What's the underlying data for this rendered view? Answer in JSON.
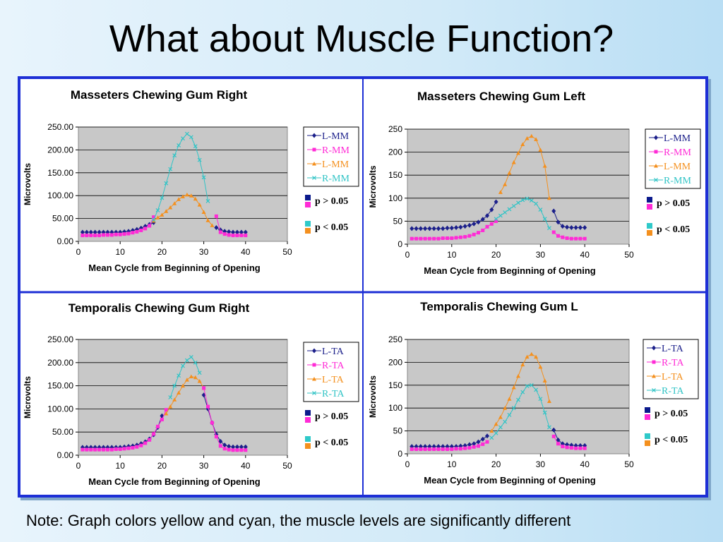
{
  "title": "What about Muscle Function?",
  "note": "Note:  Graph colors yellow and cyan, the muscle levels are significantly different",
  "colors": {
    "L-MM": "#1b1f8a",
    "R-MM": "#ff2bd6",
    "L-MM (orange)": "#f4901e",
    "R-MM (cyan)": "#31c4c6",
    "L-TA": "#1b1f8a",
    "R-TA": "#ff2bd6",
    "L-TA (orange)": "#f4901e",
    "R-TA (cyan)": "#31c4c6",
    "p_gt_top": "#0b1a8c",
    "p_gt_bottom": "#ff2bd6",
    "p_lt_top": "#2fc9c9",
    "p_lt_bottom": "#f4901e",
    "plot_bg": "#c8c8c8",
    "frame": "#1d2fd6"
  },
  "chart_data": [
    {
      "type": "line",
      "title": "Masseters Chewing Gum Right",
      "xlabel": "Mean Cycle from Beginning of Opening",
      "ylabel": "Microvolts",
      "xlim": [
        0,
        50
      ],
      "ylim": [
        0,
        250
      ],
      "xticks": [
        "0",
        "10",
        "20",
        "30",
        "40",
        "50"
      ],
      "yticks": [
        "0.00",
        "50.00",
        "100.00",
        "150.00",
        "200.00",
        "250.00"
      ],
      "legend": [
        "L-MM",
        "R-MM",
        "L-MM",
        "R-MM"
      ],
      "significance": [
        "p > 0.05",
        "p < 0.05"
      ],
      "series": [
        {
          "name": "L-MM",
          "x": [
            1,
            2,
            3,
            4,
            5,
            6,
            7,
            8,
            9,
            10,
            11,
            12,
            13,
            14,
            15,
            16,
            17,
            18
          ],
          "values": [
            20,
            20,
            20,
            20,
            20,
            20,
            20,
            20,
            20,
            20,
            21,
            22,
            24,
            26,
            29,
            33,
            37,
            41
          ]
        },
        {
          "name": "R-MM",
          "x": [
            1,
            2,
            3,
            4,
            5,
            6,
            7,
            8,
            9,
            10,
            11,
            12,
            13,
            14,
            15,
            16,
            17,
            18
          ],
          "values": [
            13,
            13,
            13,
            13,
            13,
            14,
            14,
            14,
            15,
            15,
            16,
            17,
            19,
            21,
            24,
            28,
            34,
            53
          ]
        },
        {
          "name": "L-MM",
          "x": [
            18,
            19,
            20,
            21,
            22,
            23,
            24,
            25,
            26,
            27,
            28,
            29,
            30,
            31,
            32
          ],
          "values": [
            45,
            52,
            58,
            66,
            74,
            83,
            92,
            98,
            102,
            100,
            93,
            80,
            64,
            46,
            35
          ]
        },
        {
          "name": "R-MM",
          "x": [
            18,
            19,
            20,
            21,
            22,
            23,
            24,
            25,
            26,
            27,
            28,
            29,
            30,
            31
          ],
          "values": [
            47,
            68,
            95,
            127,
            158,
            188,
            210,
            225,
            235,
            228,
            208,
            178,
            140,
            88
          ]
        },
        {
          "name": "L-MM",
          "x": [
            33,
            34,
            35,
            36,
            37,
            38,
            39,
            40
          ],
          "values": [
            30,
            25,
            22,
            21,
            20,
            20,
            20,
            20
          ]
        },
        {
          "name": "R-MM",
          "x": [
            33,
            34,
            35,
            36,
            37,
            38,
            39,
            40
          ],
          "values": [
            55,
            20,
            16,
            14,
            13,
            13,
            13,
            13
          ]
        }
      ]
    },
    {
      "type": "line",
      "title": "Masseters Chewing Gum Left",
      "xlabel": "Mean Cycle from Beginning of Opening",
      "ylabel": "Microvolts",
      "xlim": [
        0,
        50
      ],
      "ylim": [
        0,
        250
      ],
      "xticks": [
        "0",
        "10",
        "20",
        "30",
        "40",
        "50"
      ],
      "yticks": [
        "0",
        "50",
        "100",
        "150",
        "200",
        "250"
      ],
      "legend": [
        "L-MM",
        "R-MM",
        "L-MM",
        "R-MM"
      ],
      "significance": [
        "p > 0.05",
        "p < 0.05"
      ],
      "series": [
        {
          "name": "L-MM",
          "x": [
            1,
            2,
            3,
            4,
            5,
            6,
            7,
            8,
            9,
            10,
            11,
            12,
            13,
            14,
            15,
            16,
            17,
            18,
            19,
            20
          ],
          "values": [
            34,
            34,
            34,
            34,
            34,
            34,
            34,
            34,
            35,
            35,
            36,
            37,
            39,
            41,
            44,
            48,
            54,
            62,
            75,
            92
          ]
        },
        {
          "name": "R-MM",
          "x": [
            1,
            2,
            3,
            4,
            5,
            6,
            7,
            8,
            9,
            10,
            11,
            12,
            13,
            14,
            15,
            16,
            17,
            18,
            19,
            20
          ],
          "values": [
            12,
            12,
            12,
            12,
            12,
            12,
            12,
            13,
            13,
            13,
            14,
            15,
            16,
            18,
            21,
            25,
            30,
            38,
            44,
            50
          ]
        },
        {
          "name": "L-MM",
          "x": [
            21,
            22,
            23,
            24,
            25,
            26,
            27,
            28,
            29,
            30,
            31,
            32
          ],
          "values": [
            113,
            130,
            155,
            178,
            198,
            217,
            230,
            235,
            228,
            205,
            170,
            100
          ]
        },
        {
          "name": "R-MM",
          "x": [
            20,
            21,
            22,
            23,
            24,
            25,
            26,
            27,
            28,
            29,
            30,
            31,
            32
          ],
          "values": [
            55,
            62,
            69,
            76,
            83,
            90,
            96,
            99,
            95,
            88,
            75,
            55,
            35
          ]
        },
        {
          "name": "L-MM",
          "x": [
            33,
            34,
            35,
            36,
            37,
            38,
            39,
            40
          ],
          "values": [
            72,
            48,
            39,
            37,
            36,
            36,
            36,
            36
          ]
        },
        {
          "name": "R-MM",
          "x": [
            33,
            34,
            35,
            36,
            37,
            38,
            39,
            40
          ],
          "values": [
            26,
            18,
            15,
            13,
            12,
            12,
            12,
            12
          ]
        }
      ]
    },
    {
      "type": "line",
      "title": "Temporalis Chewing Gum Right",
      "xlabel": "Mean Cycle from Beginning of Opening",
      "ylabel": "Microvolts",
      "xlim": [
        0,
        50
      ],
      "ylim": [
        0,
        250
      ],
      "xticks": [
        "0",
        "10",
        "20",
        "30",
        "40",
        "50"
      ],
      "yticks": [
        "0.00",
        "50.00",
        "100.00",
        "150.00",
        "200.00",
        "250.00"
      ],
      "legend": [
        "L-TA",
        "R-TA",
        "L-TA",
        "R-TA"
      ],
      "significance": [
        "p > 0.05",
        "p < 0.05"
      ],
      "series": [
        {
          "name": "L-TA",
          "x": [
            1,
            2,
            3,
            4,
            5,
            6,
            7,
            8,
            9,
            10,
            11,
            12,
            13,
            14,
            15,
            16,
            17,
            18,
            19,
            20
          ],
          "values": [
            17,
            17,
            17,
            17,
            17,
            17,
            17,
            17,
            17,
            17,
            18,
            19,
            20,
            22,
            25,
            29,
            35,
            44,
            60,
            85
          ]
        },
        {
          "name": "R-TA",
          "x": [
            1,
            2,
            3,
            4,
            5,
            6,
            7,
            8,
            9,
            10,
            11,
            12,
            13,
            14,
            15,
            16,
            17,
            18,
            19,
            20,
            21
          ],
          "values": [
            12,
            12,
            12,
            12,
            12,
            12,
            12,
            12,
            13,
            13,
            14,
            15,
            16,
            18,
            21,
            26,
            33,
            46,
            62,
            77,
            98
          ]
        },
        {
          "name": "L-TA",
          "x": [
            21,
            22,
            23,
            24,
            25,
            26,
            27,
            28,
            29,
            30
          ],
          "values": [
            90,
            105,
            120,
            135,
            150,
            163,
            170,
            168,
            160,
            145
          ]
        },
        {
          "name": "R-TA",
          "x": [
            22,
            23,
            24,
            25,
            26,
            27,
            28,
            29
          ],
          "values": [
            125,
            150,
            172,
            193,
            205,
            212,
            200,
            178
          ]
        },
        {
          "name": "L-TA",
          "x": [
            30,
            31,
            32,
            33,
            34,
            35,
            36,
            37,
            38,
            39,
            40
          ],
          "values": [
            130,
            100,
            70,
            45,
            30,
            22,
            19,
            18,
            18,
            18,
            18
          ]
        },
        {
          "name": "R-TA",
          "x": [
            30,
            31,
            32,
            33,
            34,
            35,
            36,
            37,
            38,
            39,
            40
          ],
          "values": [
            145,
            105,
            70,
            40,
            20,
            14,
            12,
            11,
            11,
            11,
            11
          ]
        }
      ]
    },
    {
      "type": "line",
      "title": "Temporalis Chewing Gum L",
      "xlabel": "Mean Cycle from Beginning of Opening",
      "ylabel": "Microvolts",
      "xlim": [
        0,
        50
      ],
      "ylim": [
        0,
        250
      ],
      "xticks": [
        "0",
        "10",
        "20",
        "30",
        "40",
        "50"
      ],
      "yticks": [
        "0",
        "50",
        "100",
        "150",
        "200",
        "250"
      ],
      "legend": [
        "L-TA",
        "R-TA",
        "L-TA",
        "R-TA"
      ],
      "significance": [
        "p > 0.05",
        "p < 0.05"
      ],
      "series": [
        {
          "name": "L-TA",
          "x": [
            1,
            2,
            3,
            4,
            5,
            6,
            7,
            8,
            9,
            10,
            11,
            12,
            13,
            14,
            15,
            16,
            17,
            18
          ],
          "values": [
            16,
            16,
            16,
            16,
            16,
            16,
            16,
            16,
            16,
            16,
            16,
            17,
            18,
            20,
            22,
            26,
            32,
            39
          ]
        },
        {
          "name": "R-TA",
          "x": [
            1,
            2,
            3,
            4,
            5,
            6,
            7,
            8,
            9,
            10,
            11,
            12,
            13,
            14,
            15,
            16,
            17,
            18
          ],
          "values": [
            10,
            10,
            10,
            10,
            10,
            10,
            10,
            10,
            10,
            10,
            11,
            11,
            12,
            13,
            15,
            17,
            21,
            26
          ]
        },
        {
          "name": "L-TA",
          "x": [
            19,
            20,
            21,
            22,
            23,
            24,
            25,
            26,
            27,
            28,
            29,
            30,
            31,
            32
          ],
          "values": [
            50,
            65,
            80,
            100,
            120,
            145,
            170,
            195,
            212,
            218,
            212,
            190,
            160,
            115
          ]
        },
        {
          "name": "R-TA",
          "x": [
            19,
            20,
            21,
            22,
            23,
            24,
            25,
            26,
            27,
            28,
            29,
            30,
            31,
            32
          ],
          "values": [
            35,
            45,
            58,
            70,
            85,
            100,
            118,
            135,
            148,
            150,
            140,
            120,
            90,
            58
          ]
        },
        {
          "name": "L-TA",
          "x": [
            33,
            34,
            35,
            36,
            37,
            38,
            39,
            40
          ],
          "values": [
            52,
            30,
            22,
            20,
            19,
            18,
            18,
            18
          ]
        },
        {
          "name": "R-TA",
          "x": [
            33,
            34,
            35,
            36,
            37,
            38,
            39,
            40
          ],
          "values": [
            38,
            22,
            16,
            14,
            13,
            12,
            12,
            12
          ]
        }
      ]
    }
  ]
}
